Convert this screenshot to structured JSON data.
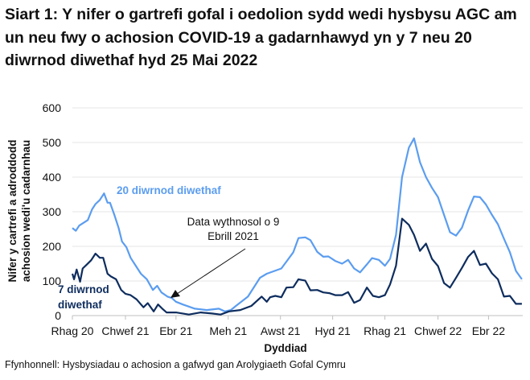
{
  "chart_data": {
    "type": "line",
    "title": "Siart 1: Y nifer o gartrefi gofal i oedolion sydd wedi hysbysu AGC am un neu fwy o achosion COVID-19 a gadarnhawyd yn y 7 neu 20 diwrnod diwethaf hyd 25 Mai 2022",
    "xlabel": "Dyddiad",
    "ylabel": "Nifer y cartrefi a adroddodd achosion wedi'u cadarnhau",
    "ylim": [
      0,
      600
    ],
    "yticks": [
      0,
      100,
      200,
      300,
      400,
      500,
      600
    ],
    "xlim": [
      "2020-12-01",
      "2022-05-11"
    ],
    "xticks": [
      {
        "label": "Rhag 20",
        "date": "2020-12-01"
      },
      {
        "label": "Chwef 21",
        "date": "2021-02-01"
      },
      {
        "label": "Ebr 21",
        "date": "2021-04-01"
      },
      {
        "label": "Meh 21",
        "date": "2021-06-01"
      },
      {
        "label": "Awst 21",
        "date": "2021-08-01"
      },
      {
        "label": "Hyd 21",
        "date": "2021-10-01"
      },
      {
        "label": "Rhag 21",
        "date": "2021-12-01"
      },
      {
        "label": "Chwef 22",
        "date": "2022-02-01"
      },
      {
        "label": "Ebr 22",
        "date": "2022-04-01"
      }
    ],
    "grid": "horizontal",
    "annotation": "Data wythnosol o 9 Ebrill 2021",
    "series": [
      {
        "name": "20 diwrnod diwethaf",
        "color": "#5B9DF0",
        "points": [
          [
            "2020-12-01",
            253
          ],
          [
            "2020-12-05",
            245
          ],
          [
            "2020-12-09",
            260
          ],
          [
            "2020-12-14",
            268
          ],
          [
            "2020-12-19",
            276
          ],
          [
            "2020-12-24",
            307
          ],
          [
            "2020-12-28",
            322
          ],
          [
            "2021-01-02",
            334
          ],
          [
            "2021-01-07",
            353
          ],
          [
            "2021-01-11",
            326
          ],
          [
            "2021-01-14",
            326
          ],
          [
            "2021-01-19",
            291
          ],
          [
            "2021-01-24",
            253
          ],
          [
            "2021-01-28",
            214
          ],
          [
            "2021-02-02",
            198
          ],
          [
            "2021-02-07",
            167
          ],
          [
            "2021-02-13",
            144
          ],
          [
            "2021-02-19",
            121
          ],
          [
            "2021-02-26",
            105
          ],
          [
            "2021-03-05",
            74
          ],
          [
            "2021-03-10",
            86
          ],
          [
            "2021-03-15",
            67
          ],
          [
            "2021-03-22",
            55
          ],
          [
            "2021-03-27",
            51
          ],
          [
            "2021-04-01",
            40
          ],
          [
            "2021-04-09",
            32
          ],
          [
            "2021-04-23",
            20
          ],
          [
            "2021-05-07",
            16
          ],
          [
            "2021-05-21",
            20
          ],
          [
            "2021-05-28",
            12
          ],
          [
            "2021-06-04",
            16
          ],
          [
            "2021-06-10",
            28
          ],
          [
            "2021-06-24",
            55
          ],
          [
            "2021-07-08",
            109
          ],
          [
            "2021-07-16",
            121
          ],
          [
            "2021-08-02",
            136
          ],
          [
            "2021-08-08",
            156
          ],
          [
            "2021-08-16",
            183
          ],
          [
            "2021-08-22",
            224
          ],
          [
            "2021-08-30",
            226
          ],
          [
            "2021-09-05",
            218
          ],
          [
            "2021-09-13",
            184
          ],
          [
            "2021-09-20",
            170
          ],
          [
            "2021-09-26",
            171
          ],
          [
            "2021-10-04",
            158
          ],
          [
            "2021-10-12",
            150
          ],
          [
            "2021-10-19",
            161
          ],
          [
            "2021-10-26",
            136
          ],
          [
            "2021-11-02",
            125
          ],
          [
            "2021-11-10",
            148
          ],
          [
            "2021-11-16",
            166
          ],
          [
            "2021-11-24",
            161
          ],
          [
            "2021-12-01",
            144
          ],
          [
            "2021-12-07",
            164
          ],
          [
            "2021-12-14",
            233
          ],
          [
            "2021-12-21",
            400
          ],
          [
            "2021-12-29",
            485
          ],
          [
            "2022-01-04",
            512
          ],
          [
            "2022-01-11",
            443
          ],
          [
            "2022-01-18",
            400
          ],
          [
            "2022-01-25",
            369
          ],
          [
            "2022-02-01",
            342
          ],
          [
            "2022-02-08",
            291
          ],
          [
            "2022-02-15",
            241
          ],
          [
            "2022-02-22",
            231
          ],
          [
            "2022-03-01",
            254
          ],
          [
            "2022-03-08",
            303
          ],
          [
            "2022-03-15",
            344
          ],
          [
            "2022-03-22",
            342
          ],
          [
            "2022-03-29",
            321
          ],
          [
            "2022-04-05",
            291
          ],
          [
            "2022-04-12",
            264
          ],
          [
            "2022-04-19",
            222
          ],
          [
            "2022-04-26",
            183
          ],
          [
            "2022-05-03",
            129
          ],
          [
            "2022-05-10",
            105
          ]
        ]
      },
      {
        "name": "7 diwrnod diwethaf",
        "color": "#0E2D5E",
        "points": [
          [
            "2020-12-01",
            121
          ],
          [
            "2020-12-03",
            105
          ],
          [
            "2020-12-06",
            133
          ],
          [
            "2020-12-10",
            98
          ],
          [
            "2020-12-13",
            136
          ],
          [
            "2020-12-18",
            148
          ],
          [
            "2020-12-23",
            160
          ],
          [
            "2020-12-28",
            179
          ],
          [
            "2021-01-02",
            167
          ],
          [
            "2021-01-06",
            167
          ],
          [
            "2021-01-11",
            121
          ],
          [
            "2021-01-15",
            113
          ],
          [
            "2021-01-21",
            105
          ],
          [
            "2021-01-27",
            74
          ],
          [
            "2021-02-01",
            63
          ],
          [
            "2021-02-07",
            59
          ],
          [
            "2021-02-14",
            47
          ],
          [
            "2021-02-22",
            24
          ],
          [
            "2021-02-27",
            36
          ],
          [
            "2021-03-06",
            12
          ],
          [
            "2021-03-11",
            32
          ],
          [
            "2021-03-16",
            20
          ],
          [
            "2021-03-21",
            9
          ],
          [
            "2021-04-01",
            9
          ],
          [
            "2021-04-16",
            3
          ],
          [
            "2021-04-30",
            9
          ],
          [
            "2021-05-13",
            6
          ],
          [
            "2021-05-23",
            3
          ],
          [
            "2021-06-02",
            12
          ],
          [
            "2021-06-15",
            16
          ],
          [
            "2021-06-28",
            28
          ],
          [
            "2021-07-10",
            55
          ],
          [
            "2021-07-16",
            40
          ],
          [
            "2021-07-20",
            53
          ],
          [
            "2021-07-26",
            57
          ],
          [
            "2021-08-02",
            53
          ],
          [
            "2021-08-08",
            81
          ],
          [
            "2021-08-16",
            82
          ],
          [
            "2021-08-22",
            105
          ],
          [
            "2021-08-30",
            101
          ],
          [
            "2021-09-05",
            73
          ],
          [
            "2021-09-13",
            74
          ],
          [
            "2021-09-20",
            67
          ],
          [
            "2021-09-27",
            65
          ],
          [
            "2021-10-04",
            59
          ],
          [
            "2021-10-12",
            59
          ],
          [
            "2021-10-19",
            68
          ],
          [
            "2021-10-26",
            37
          ],
          [
            "2021-11-02",
            45
          ],
          [
            "2021-11-10",
            81
          ],
          [
            "2021-11-17",
            57
          ],
          [
            "2021-11-24",
            53
          ],
          [
            "2021-12-01",
            59
          ],
          [
            "2021-12-07",
            90
          ],
          [
            "2021-12-14",
            144
          ],
          [
            "2021-12-21",
            280
          ],
          [
            "2021-12-29",
            262
          ],
          [
            "2022-01-04",
            233
          ],
          [
            "2022-01-11",
            187
          ],
          [
            "2022-01-18",
            208
          ],
          [
            "2022-01-25",
            164
          ],
          [
            "2022-02-01",
            143
          ],
          [
            "2022-02-08",
            94
          ],
          [
            "2022-02-15",
            81
          ],
          [
            "2022-02-22",
            109
          ],
          [
            "2022-03-01",
            138
          ],
          [
            "2022-03-08",
            169
          ],
          [
            "2022-03-15",
            187
          ],
          [
            "2022-03-22",
            146
          ],
          [
            "2022-03-29",
            150
          ],
          [
            "2022-04-05",
            122
          ],
          [
            "2022-04-12",
            105
          ],
          [
            "2022-04-19",
            55
          ],
          [
            "2022-04-26",
            57
          ],
          [
            "2022-05-03",
            34
          ],
          [
            "2022-05-10",
            34
          ]
        ]
      }
    ],
    "series_labels": {
      "s20": "20 diwrnod diwethaf",
      "s7_line1": "7 diwrnod",
      "s7_line2": "diwethaf"
    },
    "annotation_lines": [
      "Data wythnosol o 9",
      "Ebrill 2021"
    ]
  },
  "footer": "Ffynhonnell: Hysbysiadau o achosion a gafwyd gan Arolygiaeth Gofal Cymru",
  "ylabel_lines": [
    "Nifer y cartrefi a adroddodd",
    "achosion wedi'u cadarnhau"
  ]
}
